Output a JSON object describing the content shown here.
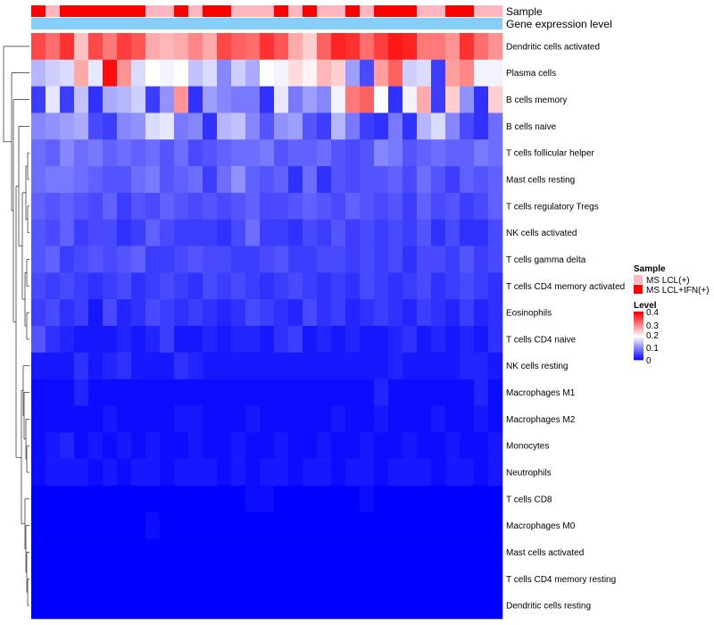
{
  "chart_data": {
    "type": "heatmap",
    "annotation_labels": [
      "Sample",
      "Gene expression level"
    ],
    "rows": [
      "Dendritic cells activated",
      "Plasma cells",
      "B cells memory",
      "B cells naive",
      "T cells follicular helper",
      "Mast cells resting",
      "T cells regulatory  Tregs",
      "NK cells activated",
      "T cells gamma delta",
      "T cells CD4 memory activated",
      "Eosinophils",
      "T cells CD4 naive",
      "NK cells resting",
      "Macrophages M1",
      "Macrophages M2",
      "Monocytes",
      "Neutrophils",
      "T cells CD8",
      "Macrophages M0",
      "Mast cells activated",
      "T cells CD4 memory resting",
      "Dendritic cells resting"
    ],
    "sample_groups": [
      1,
      0,
      1,
      1,
      1,
      1,
      1,
      1,
      0,
      0,
      1,
      0,
      1,
      1,
      0,
      0,
      0,
      1,
      0,
      1,
      0,
      0,
      1,
      0,
      1,
      1,
      1,
      0,
      0,
      1,
      1,
      0,
      0
    ],
    "sample_legend": {
      "title": "Sample",
      "items": [
        {
          "label": "MS LCL(+)",
          "color": "#ffb6c1"
        },
        {
          "label": "MS LCL+IFN(+)",
          "color": "#ff0000"
        }
      ]
    },
    "level_legend": {
      "title": "Level",
      "ticks": [
        "0.4",
        "0.3",
        "0.2",
        "0.1",
        "0"
      ],
      "min": 0,
      "max": 0.42
    },
    "colors": {
      "low": "#0000ff",
      "mid": "#ffffff",
      "high": "#ff0000",
      "gene_bar": "#87cefa"
    },
    "values": [
      [
        0.36,
        0.33,
        0.38,
        0.26,
        0.36,
        0.32,
        0.37,
        0.35,
        0.28,
        0.27,
        0.28,
        0.31,
        0.28,
        0.36,
        0.34,
        0.33,
        0.38,
        0.35,
        0.28,
        0.25,
        0.34,
        0.39,
        0.38,
        0.33,
        0.37,
        0.4,
        0.39,
        0.32,
        0.32,
        0.3,
        0.38,
        0.33,
        0.3
      ],
      [
        0.15,
        0.17,
        0.18,
        0.28,
        0.19,
        0.41,
        0.3,
        0.18,
        0.21,
        0.2,
        0.21,
        0.16,
        0.18,
        0.11,
        0.17,
        0.14,
        0.21,
        0.2,
        0.24,
        0.22,
        0.27,
        0.25,
        0.13,
        0.06,
        0.29,
        0.34,
        0.17,
        0.18,
        0.05,
        0.29,
        0.31,
        0.2,
        0.2
      ],
      [
        0.05,
        0.19,
        0.05,
        0.16,
        0.04,
        0.14,
        0.15,
        0.17,
        0.05,
        0.12,
        0.3,
        0.04,
        0.13,
        0.11,
        0.1,
        0.1,
        0.04,
        0.19,
        0.1,
        0.13,
        0.11,
        0.2,
        0.32,
        0.34,
        0.21,
        0.04,
        0.2,
        0.28,
        0.05,
        0.25,
        0.12,
        0.04,
        0.25
      ],
      [
        0.11,
        0.12,
        0.13,
        0.14,
        0.06,
        0.05,
        0.11,
        0.12,
        0.18,
        0.19,
        0.1,
        0.11,
        0.04,
        0.15,
        0.16,
        0.11,
        0.07,
        0.12,
        0.13,
        0.07,
        0.05,
        0.15,
        0.1,
        0.05,
        0.04,
        0.1,
        0.04,
        0.15,
        0.18,
        0.11,
        0.06,
        0.04,
        0.09
      ],
      [
        0.09,
        0.08,
        0.11,
        0.09,
        0.1,
        0.08,
        0.09,
        0.08,
        0.09,
        0.07,
        0.09,
        0.06,
        0.07,
        0.08,
        0.09,
        0.09,
        0.1,
        0.07,
        0.08,
        0.08,
        0.09,
        0.07,
        0.06,
        0.07,
        0.11,
        0.1,
        0.07,
        0.08,
        0.09,
        0.08,
        0.08,
        0.1,
        0.09
      ],
      [
        0.09,
        0.1,
        0.1,
        0.09,
        0.08,
        0.07,
        0.07,
        0.09,
        0.1,
        0.07,
        0.08,
        0.09,
        0.05,
        0.09,
        0.12,
        0.08,
        0.07,
        0.08,
        0.04,
        0.09,
        0.04,
        0.07,
        0.06,
        0.07,
        0.07,
        0.08,
        0.06,
        0.09,
        0.07,
        0.05,
        0.08,
        0.07,
        0.08
      ],
      [
        0.08,
        0.07,
        0.08,
        0.07,
        0.06,
        0.08,
        0.05,
        0.07,
        0.06,
        0.08,
        0.07,
        0.06,
        0.07,
        0.06,
        0.07,
        0.08,
        0.06,
        0.06,
        0.07,
        0.08,
        0.07,
        0.06,
        0.08,
        0.07,
        0.06,
        0.07,
        0.05,
        0.08,
        0.06,
        0.07,
        0.05,
        0.06,
        0.08
      ],
      [
        0.07,
        0.06,
        0.08,
        0.05,
        0.06,
        0.06,
        0.04,
        0.05,
        0.08,
        0.06,
        0.05,
        0.05,
        0.05,
        0.04,
        0.06,
        0.09,
        0.05,
        0.05,
        0.04,
        0.06,
        0.05,
        0.07,
        0.05,
        0.06,
        0.05,
        0.06,
        0.05,
        0.07,
        0.04,
        0.06,
        0.04,
        0.04,
        0.06
      ],
      [
        0.07,
        0.08,
        0.05,
        0.06,
        0.07,
        0.06,
        0.07,
        0.08,
        0.05,
        0.05,
        0.06,
        0.07,
        0.06,
        0.06,
        0.05,
        0.05,
        0.06,
        0.07,
        0.05,
        0.05,
        0.06,
        0.06,
        0.05,
        0.06,
        0.05,
        0.06,
        0.04,
        0.06,
        0.06,
        0.05,
        0.07,
        0.05,
        0.06
      ],
      [
        0.06,
        0.05,
        0.06,
        0.05,
        0.04,
        0.05,
        0.06,
        0.04,
        0.05,
        0.06,
        0.05,
        0.04,
        0.06,
        0.05,
        0.06,
        0.05,
        0.04,
        0.05,
        0.06,
        0.05,
        0.04,
        0.05,
        0.04,
        0.06,
        0.05,
        0.04,
        0.05,
        0.06,
        0.04,
        0.05,
        0.06,
        0.05,
        0.04
      ],
      [
        0.05,
        0.06,
        0.04,
        0.05,
        0.02,
        0.06,
        0.03,
        0.04,
        0.06,
        0.05,
        0.04,
        0.05,
        0.04,
        0.03,
        0.04,
        0.06,
        0.05,
        0.04,
        0.03,
        0.06,
        0.04,
        0.05,
        0.03,
        0.04,
        0.05,
        0.04,
        0.03,
        0.05,
        0.04,
        0.03,
        0.05,
        0.03,
        0.04
      ],
      [
        0.07,
        0.04,
        0.03,
        0.02,
        0.02,
        0.02,
        0.03,
        0.02,
        0.03,
        0.05,
        0.02,
        0.02,
        0.03,
        0.02,
        0.03,
        0.03,
        0.02,
        0.04,
        0.05,
        0.02,
        0.03,
        0.02,
        0.03,
        0.02,
        0.02,
        0.03,
        0.04,
        0.02,
        0.03,
        0.02,
        0.03,
        0.02,
        0.04
      ],
      [
        0.02,
        0.02,
        0.02,
        0.04,
        0.02,
        0.03,
        0.04,
        0.02,
        0.02,
        0.02,
        0.04,
        0.03,
        0.02,
        0.02,
        0.02,
        0.02,
        0.02,
        0.02,
        0.02,
        0.02,
        0.02,
        0.02,
        0.02,
        0.02,
        0.02,
        0.03,
        0.02,
        0.02,
        0.02,
        0.02,
        0.03,
        0.03,
        0.02
      ],
      [
        0.01,
        0.01,
        0.01,
        0.03,
        0.01,
        0.01,
        0.01,
        0.01,
        0.01,
        0.01,
        0.01,
        0.01,
        0.01,
        0.01,
        0.01,
        0.01,
        0.01,
        0.01,
        0.01,
        0.01,
        0.01,
        0.01,
        0.01,
        0.01,
        0.03,
        0.01,
        0.01,
        0.01,
        0.01,
        0.01,
        0.01,
        0.03,
        0.01
      ],
      [
        0.01,
        0.01,
        0.01,
        0.01,
        0.01,
        0.02,
        0.01,
        0.01,
        0.01,
        0.01,
        0.02,
        0.02,
        0.01,
        0.01,
        0.01,
        0.02,
        0.01,
        0.01,
        0.01,
        0.01,
        0.01,
        0.02,
        0.01,
        0.01,
        0.02,
        0.01,
        0.01,
        0.01,
        0.02,
        0.01,
        0.01,
        0.02,
        0.01
      ],
      [
        0.01,
        0.02,
        0.03,
        0.01,
        0.02,
        0.01,
        0.02,
        0.01,
        0.02,
        0.01,
        0.01,
        0.02,
        0.01,
        0.01,
        0.02,
        0.01,
        0.01,
        0.02,
        0.01,
        0.01,
        0.02,
        0.01,
        0.01,
        0.02,
        0.01,
        0.01,
        0.02,
        0.01,
        0.01,
        0.02,
        0.01,
        0.01,
        0.02
      ],
      [
        0.01,
        0.02,
        0.02,
        0.02,
        0.01,
        0.02,
        0.01,
        0.02,
        0.02,
        0.01,
        0.02,
        0.02,
        0.02,
        0.01,
        0.02,
        0.01,
        0.02,
        0.02,
        0.01,
        0.02,
        0.02,
        0.01,
        0.02,
        0.02,
        0.01,
        0.02,
        0.02,
        0.02,
        0.01,
        0.02,
        0.02,
        0.01,
        0.02
      ],
      [
        0.0,
        0.0,
        0.0,
        0.0,
        0.0,
        0.0,
        0.0,
        0.0,
        0.0,
        0.0,
        0.0,
        0.0,
        0.0,
        0.0,
        0.0,
        0.01,
        0.01,
        0.0,
        0.0,
        0.0,
        0.0,
        0.0,
        0.0,
        0.01,
        0.0,
        0.0,
        0.0,
        0.0,
        0.0,
        0.0,
        0.0,
        0.0,
        0.0
      ],
      [
        0.0,
        0.0,
        0.0,
        0.0,
        0.0,
        0.0,
        0.0,
        0.0,
        0.01,
        0.0,
        0.0,
        0.0,
        0.0,
        0.0,
        0.0,
        0.0,
        0.0,
        0.0,
        0.0,
        0.0,
        0.0,
        0.0,
        0.0,
        0.0,
        0.0,
        0.0,
        0.0,
        0.0,
        0.0,
        0.0,
        0.0,
        0.0,
        0.0
      ],
      [
        0.0,
        0.0,
        0.0,
        0.0,
        0.0,
        0.0,
        0.0,
        0.0,
        0.0,
        0.0,
        0.0,
        0.0,
        0.0,
        0.0,
        0.0,
        0.0,
        0.0,
        0.0,
        0.0,
        0.0,
        0.0,
        0.0,
        0.0,
        0.0,
        0.0,
        0.0,
        0.0,
        0.0,
        0.0,
        0.0,
        0.0,
        0.0,
        0.0
      ],
      [
        0.0,
        0.0,
        0.0,
        0.0,
        0.0,
        0.0,
        0.0,
        0.0,
        0.0,
        0.0,
        0.0,
        0.0,
        0.0,
        0.0,
        0.0,
        0.0,
        0.0,
        0.0,
        0.0,
        0.0,
        0.0,
        0.0,
        0.0,
        0.0,
        0.0,
        0.0,
        0.0,
        0.0,
        0.0,
        0.0,
        0.0,
        0.0,
        0.0
      ],
      [
        0.0,
        0.0,
        0.0,
        0.0,
        0.0,
        0.0,
        0.0,
        0.0,
        0.0,
        0.0,
        0.0,
        0.0,
        0.0,
        0.0,
        0.0,
        0.0,
        0.0,
        0.0,
        0.0,
        0.0,
        0.0,
        0.0,
        0.0,
        0.0,
        0.0,
        0.0,
        0.0,
        0.0,
        0.0,
        0.0,
        0.0,
        0.0,
        0.0
      ]
    ]
  }
}
